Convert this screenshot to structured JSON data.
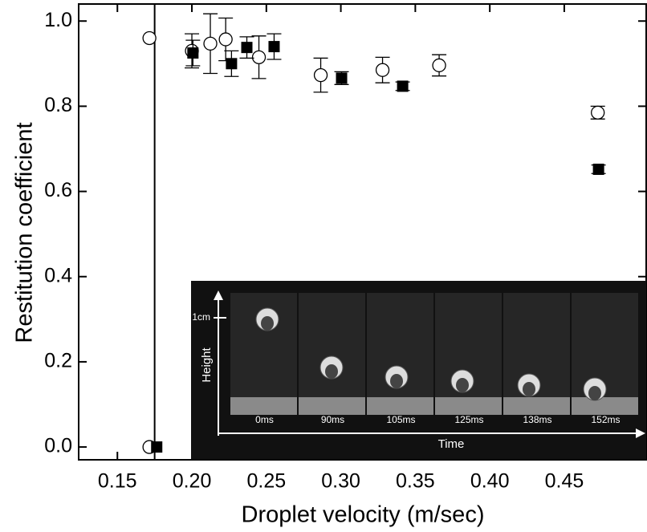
{
  "chart_data": {
    "type": "scatter",
    "x_label": "Droplet velocity (m/sec)",
    "y_label": "Restitution coefficient",
    "xlim": [
      0.124,
      0.505
    ],
    "ylim": [
      -0.03,
      1.04
    ],
    "xticks": [
      0.15,
      {
        "value": 0.2,
        "label": "0.20"
      },
      0.25,
      {
        "value": 0.3,
        "label": "0.30"
      },
      0.35,
      {
        "value": 0.4,
        "label": "0.40"
      },
      0.45
    ],
    "yticks": [
      {
        "value": 0,
        "label": "0.0"
      },
      0.2,
      0.4,
      0.6,
      0.8,
      {
        "value": 1,
        "label": "1.0"
      }
    ],
    "vline_x": 0.175,
    "series": [
      {
        "marker": "circle",
        "color": "#000000",
        "x": [
          0.1715,
          0.1715,
          0.2,
          0.2124,
          0.2227,
          0.245,
          0.2865,
          0.328,
          0.366,
          0.4725
        ],
        "values": [
          0.96,
          0.0,
          0.93,
          0.947,
          0.957,
          0.915,
          0.873,
          0.885,
          0.896,
          0.785
        ],
        "errors": [
          null,
          null,
          0.04,
          0.07,
          0.05,
          0.05,
          0.04,
          0.03,
          0.025,
          0.015
        ]
      },
      {
        "marker": "square",
        "color": "#000000",
        "x": [
          0.1764,
          0.2007,
          0.2266,
          0.2369,
          0.2552,
          0.3005,
          0.3415,
          0.473
        ],
        "values": [
          0.0,
          0.925,
          0.9,
          0.938,
          0.94,
          0.866,
          0.847,
          0.652
        ],
        "errors": [
          null,
          0.03,
          0.03,
          0.025,
          0.03,
          0.015,
          0.01,
          0.01
        ]
      }
    ]
  },
  "inset": {
    "scale_label": "1cm",
    "y_axis_label": "Height",
    "x_axis_label": "Time",
    "frames": [
      "0ms",
      "90ms",
      "105ms",
      "125ms",
      "138ms",
      "152ms"
    ]
  }
}
